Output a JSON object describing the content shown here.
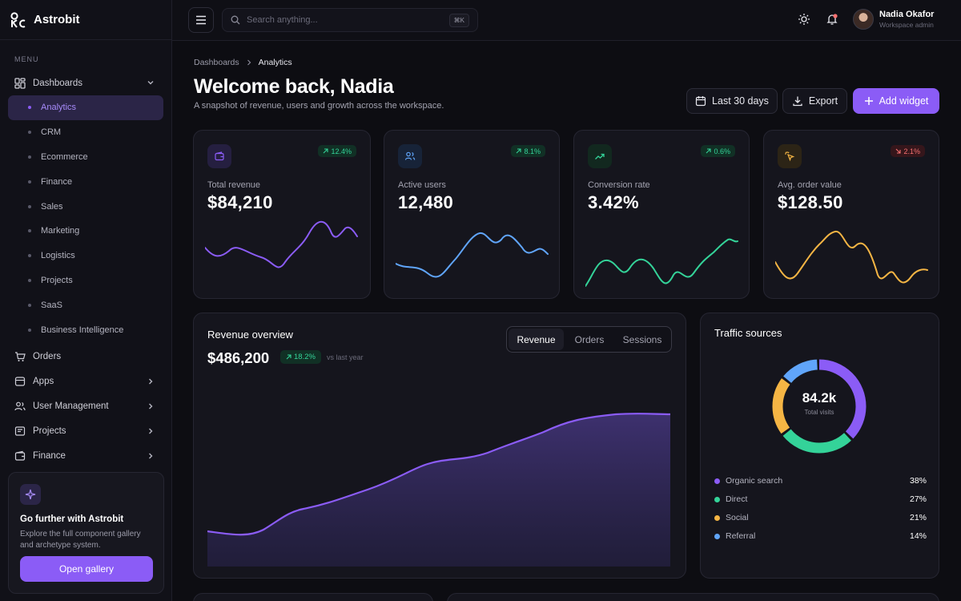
{
  "brand": {
    "name": "Astrobit"
  },
  "sidebar": {
    "menu_label": "MENU",
    "dashboards_label": "Dashboards",
    "sub_items": [
      "Analytics",
      "CRM",
      "Ecommerce",
      "Finance",
      "Sales",
      "Marketing",
      "Logistics",
      "Projects",
      "SaaS",
      "Business Intelligence"
    ],
    "active_sub": "Analytics",
    "items": [
      {
        "label": "Orders",
        "icon": "cart-icon"
      },
      {
        "label": "Apps",
        "icon": "apps-icon"
      },
      {
        "label": "User Management",
        "icon": "users-icon"
      },
      {
        "label": "Projects",
        "icon": "folder-icon"
      },
      {
        "label": "Finance",
        "icon": "wallet-icon"
      }
    ],
    "promo": {
      "title": "Go further with Astrobit",
      "text": "Explore the full component gallery and archetype system.",
      "button": "Open gallery"
    }
  },
  "topbar": {
    "search_placeholder": "Search anything...",
    "shortcut": "⌘K",
    "user_name": "Nadia Okafor",
    "user_role": "Workspace admin"
  },
  "header": {
    "breadcrumb_root": "Dashboards",
    "breadcrumb_current": "Analytics",
    "title": "Welcome back, Nadia",
    "subtitle": "A snapshot of revenue, users and growth across the workspace.",
    "date_range": "Last 30 days",
    "export": "Export",
    "add_widget": "Add widget"
  },
  "kpis": [
    {
      "label": "Total revenue",
      "value": "$84,210",
      "change": "12.4%",
      "trend": "up",
      "color": "#8b5cf6",
      "icon": "wallet-icon"
    },
    {
      "label": "Active users",
      "value": "12,480",
      "change": "8.1%",
      "trend": "up",
      "color": "#60a5fa",
      "icon": "users-icon"
    },
    {
      "label": "Conversion rate",
      "value": "3.42%",
      "change": "0.6%",
      "trend": "up",
      "color": "#34d399",
      "icon": "trend-up-icon"
    },
    {
      "label": "Avg. order value",
      "value": "$128.50",
      "change": "2.1%",
      "trend": "down",
      "color": "#f5b544",
      "icon": "cursor-click-icon"
    }
  ],
  "revenue": {
    "title": "Revenue overview",
    "value": "$486,200",
    "change": "18.2%",
    "vs": "vs last year",
    "tabs": [
      "Revenue",
      "Orders",
      "Sessions"
    ],
    "active_tab": "Revenue"
  },
  "traffic": {
    "title": "Traffic sources",
    "total": "84.2k",
    "total_label": "Total visits",
    "sources": [
      {
        "name": "Organic search",
        "pct": "38%",
        "value": 38,
        "color": "#8b5cf6"
      },
      {
        "name": "Direct",
        "pct": "27%",
        "value": 27,
        "color": "#34d399"
      },
      {
        "name": "Social",
        "pct": "21%",
        "value": 21,
        "color": "#f5b544"
      },
      {
        "name": "Referral",
        "pct": "14%",
        "value": 14,
        "color": "#60a5fa"
      }
    ]
  },
  "colors": {
    "accent": "#8b5cf6",
    "up": "#34d399",
    "down": "#f87171"
  }
}
